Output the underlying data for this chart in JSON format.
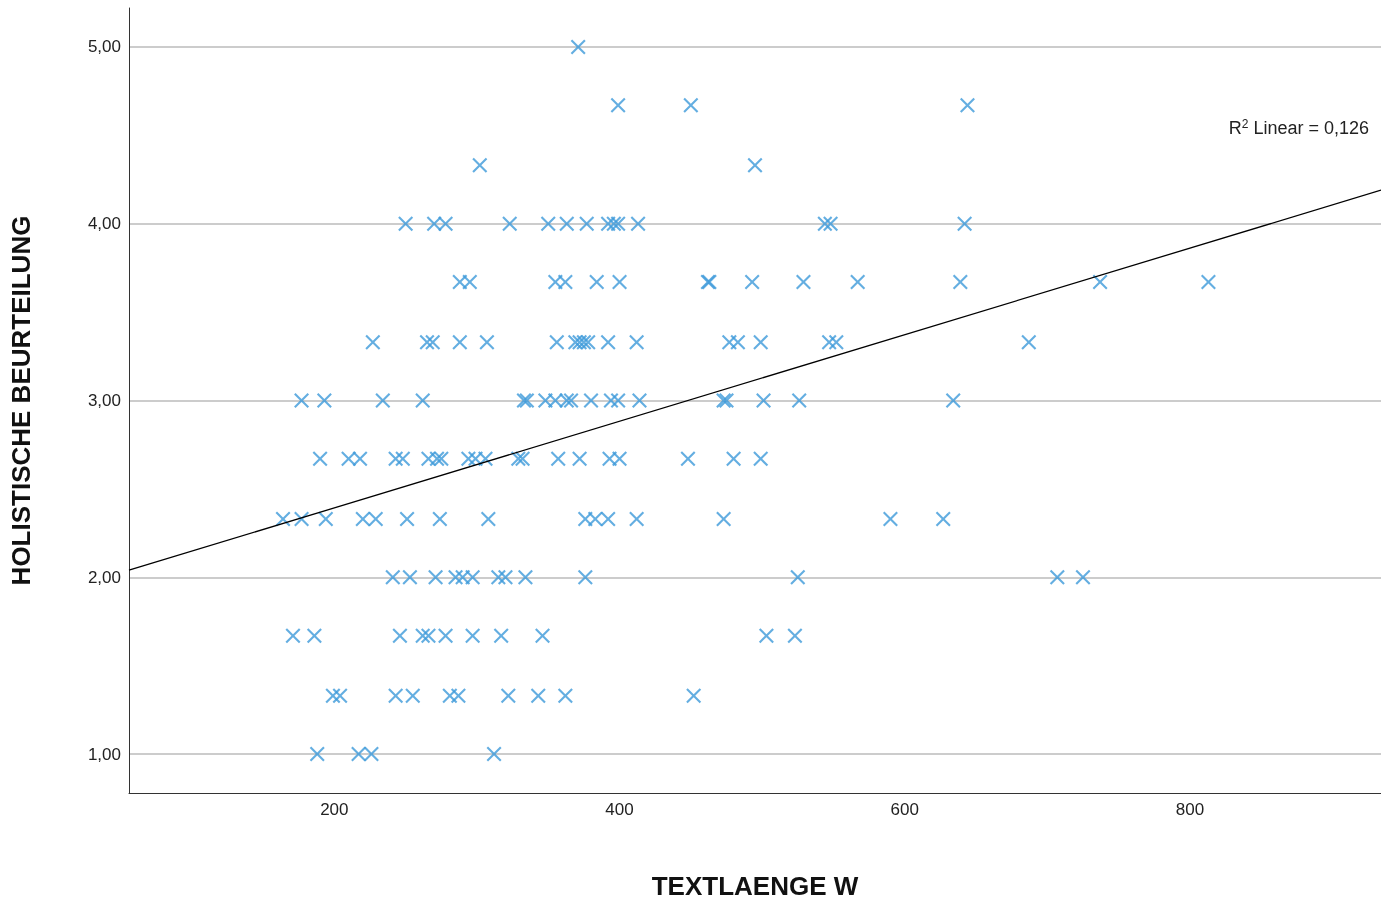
{
  "chart_data": {
    "type": "scatter",
    "xlabel": "TEXTLAENGE W",
    "ylabel": "HOLISTISCHE BEURTEILUNG",
    "xlim": [
      56,
      934
    ],
    "xticks": [
      200,
      400,
      600,
      800
    ],
    "ylim": [
      0.78,
      5.22
    ],
    "yticks": [
      {
        "value": 1,
        "label": "1,00"
      },
      {
        "value": 2,
        "label": "2,00"
      },
      {
        "value": 3,
        "label": "3,00"
      },
      {
        "value": 4,
        "label": "4,00"
      },
      {
        "value": 5,
        "label": "5,00"
      }
    ],
    "grid": "y",
    "annotations": [
      "R$^{2}$ Linear = 0,126"
    ],
    "series": [
      {
        "marker": "cross",
        "color": "#3d9ad9",
        "x": [
          371,
          399,
          450,
          644,
          302,
          495,
          250,
          270,
          278,
          323,
          350,
          363,
          377,
          392,
          396,
          399,
          413,
          544,
          548,
          642,
          288,
          295,
          355,
          362,
          384,
          400,
          462,
          463,
          493,
          529,
          567,
          639,
          737,
          813,
          227,
          265,
          269,
          288,
          307,
          356,
          369,
          372,
          375,
          378,
          392,
          412,
          477,
          483,
          499,
          547,
          552,
          687,
          177,
          193,
          234,
          262,
          333,
          335,
          348,
          355,
          363,
          366,
          380,
          394,
          399,
          414,
          473,
          475,
          501,
          526,
          634,
          190,
          210,
          218,
          243,
          248,
          266,
          272,
          275,
          294,
          299,
          306,
          329,
          332,
          357,
          372,
          393,
          400,
          448,
          480,
          499,
          164,
          177,
          194,
          220,
          229,
          251,
          274,
          308,
          376,
          383,
          392,
          412,
          473,
          590,
          627,
          241,
          253,
          271,
          285,
          290,
          297,
          315,
          320,
          334,
          376,
          525,
          707,
          725,
          171,
          186,
          246,
          262,
          266,
          278,
          297,
          317,
          346,
          503,
          523,
          199,
          204,
          243,
          255,
          281,
          287,
          322,
          343,
          362,
          452,
          188,
          217,
          226,
          312
        ],
        "values": [
          5,
          4.67,
          4.67,
          4.67,
          4.33,
          4.33,
          4,
          4,
          4,
          4,
          4,
          4,
          4,
          4,
          4,
          4,
          4,
          4,
          4,
          4,
          3.67,
          3.67,
          3.67,
          3.67,
          3.67,
          3.67,
          3.67,
          3.67,
          3.67,
          3.67,
          3.67,
          3.67,
          3.67,
          3.67,
          3.33,
          3.33,
          3.33,
          3.33,
          3.33,
          3.33,
          3.33,
          3.33,
          3.33,
          3.33,
          3.33,
          3.33,
          3.33,
          3.33,
          3.33,
          3.33,
          3.33,
          3.33,
          3,
          3,
          3,
          3,
          3,
          3,
          3,
          3,
          3,
          3,
          3,
          3,
          3,
          3,
          3,
          3,
          3,
          3,
          3,
          2.67,
          2.67,
          2.67,
          2.67,
          2.67,
          2.67,
          2.67,
          2.67,
          2.67,
          2.67,
          2.67,
          2.67,
          2.67,
          2.67,
          2.67,
          2.67,
          2.67,
          2.67,
          2.67,
          2.67,
          2.33,
          2.33,
          2.33,
          2.33,
          2.33,
          2.33,
          2.33,
          2.33,
          2.33,
          2.33,
          2.33,
          2.33,
          2.33,
          2.33,
          2.33,
          2,
          2,
          2,
          2,
          2,
          2,
          2,
          2,
          2,
          2,
          2,
          2,
          2,
          1.67,
          1.67,
          1.67,
          1.67,
          1.67,
          1.67,
          1.67,
          1.67,
          1.67,
          1.67,
          1.67,
          1.33,
          1.33,
          1.33,
          1.33,
          1.33,
          1.33,
          1.33,
          1.33,
          1.33,
          1.33,
          1,
          1,
          1,
          1
        ]
      },
      {
        "type": "line",
        "marker": "none",
        "color": "#000000",
        "line_style": "solid",
        "x": [
          56,
          934
        ],
        "values": [
          2.04,
          4.19
        ]
      }
    ]
  }
}
